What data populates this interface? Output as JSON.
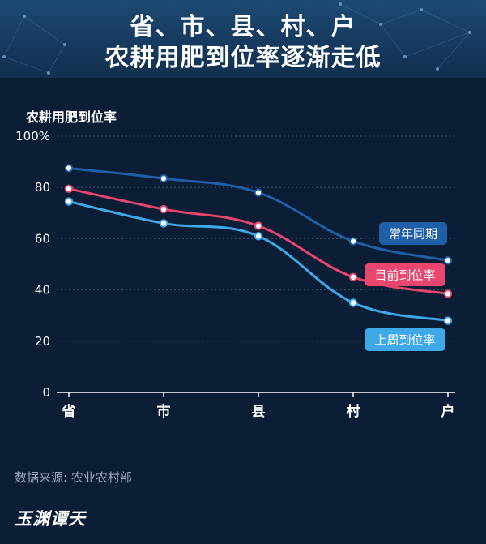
{
  "header": {
    "title_line1": "省、市、县、村、户",
    "title_line2": "农耕用肥到位率逐渐走低"
  },
  "footer": {
    "source": "数据来源: 农业农村部",
    "brand": "玉渊谭天"
  },
  "colors": {
    "background": "#0c1d36",
    "header": "#163a60",
    "series_normal": "#1f5fa8",
    "series_current": "#e8456f",
    "series_lastweek": "#3fa9e8"
  },
  "chart_data": {
    "type": "line",
    "ylabel": "农耕用肥到位率",
    "xlabel": "",
    "categories": [
      "省",
      "市",
      "县",
      "村",
      "户"
    ],
    "ylim": [
      0,
      100
    ],
    "yticks": [
      "0",
      "20",
      "40",
      "60",
      "80",
      "100%"
    ],
    "grid": true,
    "series": [
      {
        "name": "常年同期",
        "color": "#1f5fa8",
        "values": [
          87.5,
          83.5,
          78,
          59,
          51.5
        ]
      },
      {
        "name": "目前到位率",
        "color": "#e8456f",
        "values": [
          79.5,
          71.5,
          65,
          45,
          38.5
        ]
      },
      {
        "name": "上周到位率",
        "color": "#3fa9e8",
        "values": [
          74.5,
          66,
          61,
          35,
          28
        ]
      }
    ]
  }
}
